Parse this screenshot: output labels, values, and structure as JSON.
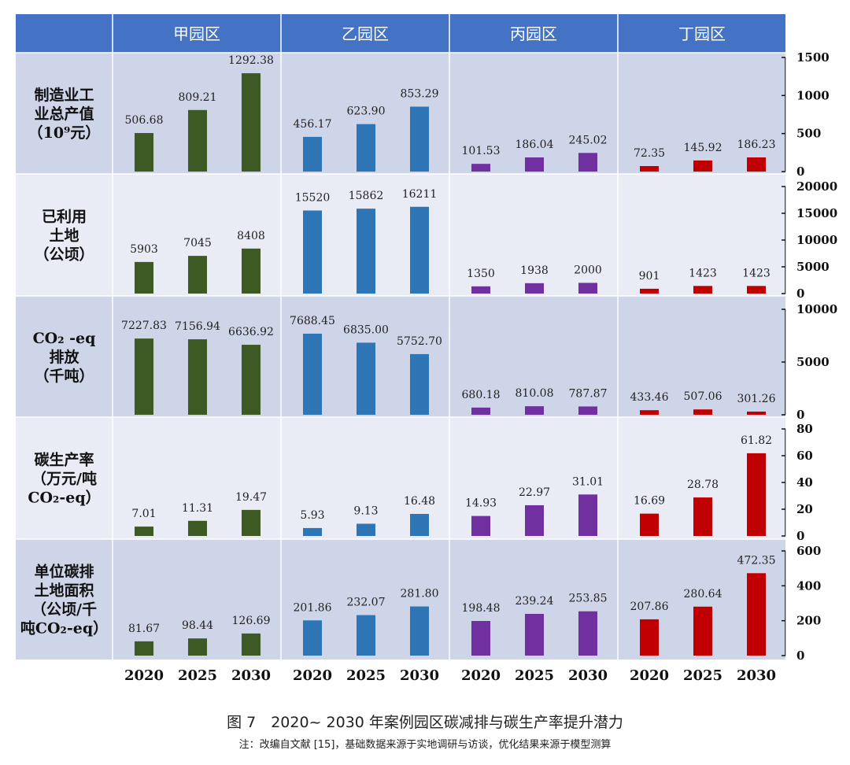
{
  "chart_data": {
    "type": "bar",
    "title": "图 7　2020~ 2030 年案例园区碳减排与碳生产率提升潜力",
    "note": "注：改编自文献 [15]，基础数据来源于实地调研与访谈，优化结果来源于模型测算",
    "parks": [
      "甲园区",
      "乙园区",
      "丙园区",
      "丁园区"
    ],
    "categories": [
      "2020",
      "2025",
      "2030"
    ],
    "colors": {
      "甲园区": "#3d5a24",
      "乙园区": "#2e75b6",
      "丙园区": "#7030a0",
      "丁园区": "#c00000",
      "header": "#4472c4",
      "row_dark": "#cfd5e8",
      "row_light": "#e9ebf5"
    },
    "grid": false,
    "panels": [
      {
        "label": [
          "制造业工",
          "业总产值",
          "（10⁹元）"
        ],
        "ylim": [
          0,
          1500
        ],
        "yticks": [
          0,
          500,
          1000,
          1500
        ],
        "values": [
          [
            506.68,
            809.21,
            1292.38
          ],
          [
            456.17,
            623.9,
            853.29
          ],
          [
            101.53,
            186.04,
            245.02
          ],
          [
            72.35,
            145.92,
            186.23
          ]
        ],
        "labels": [
          [
            "506.68",
            "809.21",
            "1292.38"
          ],
          [
            "456.17",
            "623.90",
            "853.29"
          ],
          [
            "101.53",
            "186.04",
            "245.02"
          ],
          [
            "72.35",
            "145.92",
            "186.23"
          ]
        ]
      },
      {
        "label": [
          "已利用",
          "土地",
          "（公顷）"
        ],
        "ylim": [
          0,
          20000
        ],
        "yticks": [
          0,
          5000,
          10000,
          15000,
          20000
        ],
        "values": [
          [
            5903,
            7045,
            8408
          ],
          [
            15520,
            15862,
            16211
          ],
          [
            1350,
            1938,
            2000
          ],
          [
            901,
            1423,
            1423
          ]
        ],
        "labels": [
          [
            "5903",
            "7045",
            "8408"
          ],
          [
            "15520",
            "15862",
            "16211"
          ],
          [
            "1350",
            "1938",
            "2000"
          ],
          [
            "901",
            "1423",
            "1423"
          ]
        ]
      },
      {
        "label": [
          "CO₂ -eq",
          "排放",
          "（千吨）"
        ],
        "ylim": [
          0,
          10000
        ],
        "yticks": [
          0,
          5000,
          10000
        ],
        "values": [
          [
            7227.83,
            7156.94,
            6636.92
          ],
          [
            7688.45,
            6835.0,
            5752.7
          ],
          [
            680.18,
            810.08,
            787.87
          ],
          [
            433.46,
            507.06,
            301.26
          ]
        ],
        "labels": [
          [
            "7227.83",
            "7156.94",
            "6636.92"
          ],
          [
            "7688.45",
            "6835.00",
            "5752.70"
          ],
          [
            "680.18",
            "810.08",
            "787.87"
          ],
          [
            "433.46",
            "507.06",
            "301.26"
          ]
        ]
      },
      {
        "label": [
          "碳生产率",
          "（万元/吨",
          "CO₂-eq）"
        ],
        "ylim": [
          0,
          80
        ],
        "yticks": [
          0,
          20,
          40,
          60,
          80
        ],
        "values": [
          [
            7.01,
            11.31,
            19.47
          ],
          [
            5.93,
            9.13,
            16.48
          ],
          [
            14.93,
            22.97,
            31.01
          ],
          [
            16.69,
            28.78,
            61.82
          ]
        ],
        "labels": [
          [
            "7.01",
            "11.31",
            "19.47"
          ],
          [
            "5.93",
            "9.13",
            "16.48"
          ],
          [
            "14.93",
            "22.97",
            "31.01"
          ],
          [
            "16.69",
            "28.78",
            "61.82"
          ]
        ]
      },
      {
        "label": [
          "单位碳排",
          "土地面积",
          "（公顷/千",
          "吨CO₂-eq）"
        ],
        "ylim": [
          0,
          600
        ],
        "yticks": [
          0,
          200,
          400,
          600
        ],
        "values": [
          [
            81.67,
            98.44,
            126.69
          ],
          [
            201.86,
            232.07,
            281.8
          ],
          [
            198.48,
            239.24,
            253.85
          ],
          [
            207.86,
            280.64,
            472.35
          ]
        ],
        "labels": [
          [
            "81.67",
            "98.44",
            "126.69"
          ],
          [
            "201.86",
            "232.07",
            "281.80"
          ],
          [
            "198.48",
            "239.24",
            "253.85"
          ],
          [
            "207.86",
            "280.64",
            "472.35"
          ]
        ]
      }
    ]
  }
}
